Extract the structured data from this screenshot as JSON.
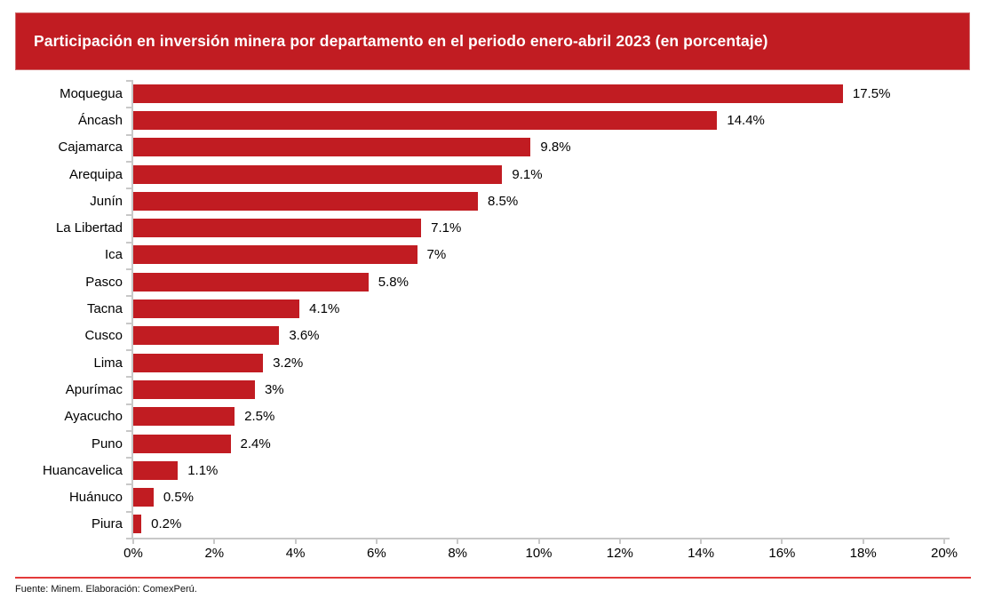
{
  "banner": {
    "title": "Participación en inversión minera por departamento en el periodo enero-abril 2023 (en porcentaje)"
  },
  "chart_data": {
    "type": "bar",
    "orientation": "horizontal",
    "title": "Participación en inversión minera por departamento en el periodo enero-abril 2023 (en porcentaje)",
    "categories": [
      "Moquegua",
      "Áncash",
      "Cajamarca",
      "Arequipa",
      "Junín",
      "La Libertad",
      "Ica",
      "Pasco",
      "Tacna",
      "Cusco",
      "Lima",
      "Apurímac",
      "Ayacucho",
      "Puno",
      "Huancavelica",
      "Huánuco",
      "Piura"
    ],
    "values": [
      17.5,
      14.4,
      9.8,
      9.1,
      8.5,
      7.1,
      7,
      5.8,
      4.1,
      3.6,
      3.2,
      3,
      2.5,
      2.4,
      1.1,
      0.5,
      0.2
    ],
    "value_labels": [
      "17.5%",
      "14.4%",
      "9.8%",
      "9.1%",
      "8.5%",
      "7.1%",
      "7%",
      "5.8%",
      "4.1%",
      "3.6%",
      "3.2%",
      "3%",
      "2.5%",
      "2.4%",
      "1.1%",
      "0.5%",
      "0.2%"
    ],
    "xlabel": "",
    "ylabel": "",
    "xlim": [
      0,
      20
    ],
    "x_ticks": [
      "0%",
      "2%",
      "4%",
      "6%",
      "8%",
      "10%",
      "12%",
      "14%",
      "16%",
      "18%",
      "20%"
    ],
    "grid": "off",
    "legend": "none"
  },
  "footer": {
    "source": "Fuente: Minem. Elaboración: ComexPerú."
  },
  "colors": {
    "banner_bg": "#C11C22",
    "bar": "#C11C22",
    "axis": "#C8C8C8",
    "separator": "#E33B3B",
    "title_text": "#FFFFFF",
    "label_text": "#000000"
  }
}
